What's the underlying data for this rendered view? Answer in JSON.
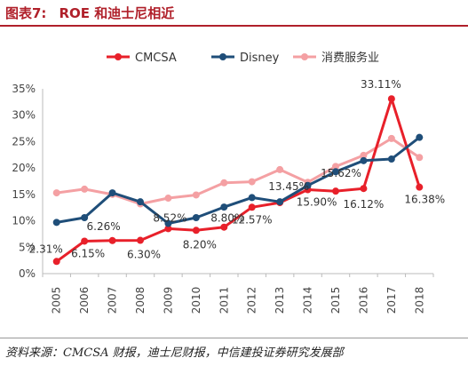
{
  "header": {
    "figure_label": "图表7:",
    "title": "ROE 和迪士尼相近"
  },
  "source_note": "资料来源：CMCSA 财报，迪士尼财报，中信建投证券研究发展部",
  "chart_data": {
    "type": "line",
    "categories": [
      "2005",
      "2006",
      "2007",
      "2008",
      "2009",
      "2010",
      "2011",
      "2012",
      "2013",
      "2014",
      "2015",
      "2016",
      "2017",
      "2018"
    ],
    "series": [
      {
        "name": "CMCSA",
        "color": "#e8202a",
        "values": [
          2.31,
          6.15,
          6.26,
          6.3,
          8.52,
          8.2,
          8.8,
          12.57,
          13.45,
          15.9,
          15.62,
          16.12,
          33.11,
          16.38
        ]
      },
      {
        "name": "Disney",
        "color": "#1f4e79",
        "values": [
          9.7,
          10.6,
          15.3,
          13.6,
          9.5,
          10.6,
          12.6,
          14.4,
          13.6,
          16.7,
          19.3,
          21.4,
          21.7,
          25.8
        ]
      },
      {
        "name": "消费服务业",
        "color": "#f4a0a3",
        "values": [
          15.3,
          16.0,
          15.0,
          13.2,
          14.3,
          14.9,
          17.2,
          17.4,
          19.7,
          17.3,
          20.3,
          22.4,
          25.6,
          22.0
        ]
      }
    ],
    "data_labels": [
      {
        "series": 0,
        "index": 0,
        "text": "2.31%"
      },
      {
        "series": 0,
        "index": 1,
        "text": "6.15%"
      },
      {
        "series": 0,
        "index": 2,
        "text": "6.26%"
      },
      {
        "series": 0,
        "index": 3,
        "text": "6.30%"
      },
      {
        "series": 0,
        "index": 4,
        "text": "8.52%"
      },
      {
        "series": 0,
        "index": 5,
        "text": "8.20%"
      },
      {
        "series": 0,
        "index": 6,
        "text": "8.80%"
      },
      {
        "series": 0,
        "index": 7,
        "text": "12.57%"
      },
      {
        "series": 0,
        "index": 8,
        "text": "13.45%"
      },
      {
        "series": 0,
        "index": 9,
        "text": "15.90%"
      },
      {
        "series": 0,
        "index": 10,
        "text": "15.62%"
      },
      {
        "series": 0,
        "index": 11,
        "text": "16.12%"
      },
      {
        "series": 0,
        "index": 12,
        "text": "33.11%"
      },
      {
        "series": 0,
        "index": 13,
        "text": "16.38%"
      }
    ],
    "ylim": [
      0,
      35
    ],
    "yticks": [
      "0%",
      "5%",
      "10%",
      "15%",
      "20%",
      "25%",
      "30%",
      "35%"
    ],
    "grid": false,
    "legend_position": "top"
  }
}
